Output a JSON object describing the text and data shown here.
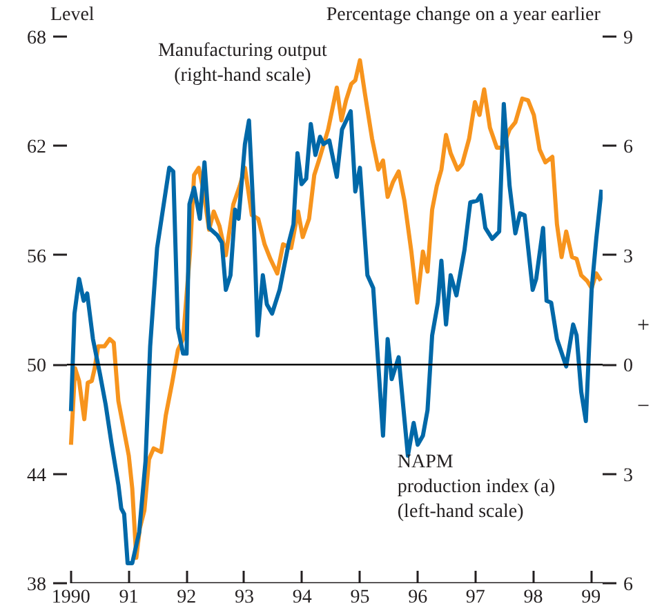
{
  "chart_data": {
    "type": "line",
    "ylabel": "Level",
    "y2label": "Percentage change on a year earlier",
    "annotations": [
      "+",
      "−"
    ],
    "xlim": [
      1989.93,
      1999.2
    ],
    "xticks": [
      1990,
      {
        "value": 1991,
        "label": "91"
      },
      {
        "value": 1992,
        "label": "92"
      },
      {
        "value": 1993,
        "label": "93"
      },
      {
        "value": 1994,
        "label": "94"
      },
      {
        "value": 1995,
        "label": "95"
      },
      {
        "value": 1996,
        "label": "96"
      },
      {
        "value": 1997,
        "label": "97"
      },
      {
        "value": 1998,
        "label": "98"
      },
      {
        "value": 1999,
        "label": "99"
      }
    ],
    "ylim": [
      38,
      68
    ],
    "yticks": [
      38,
      44,
      50,
      56,
      62,
      68
    ],
    "y2lim": [
      -6,
      9
    ],
    "y2ticks": [
      {
        "value": -6,
        "label": "6"
      },
      {
        "value": -3,
        "label": "3"
      },
      0,
      3,
      6,
      9
    ],
    "ref_lines": [
      {
        "axis": "y",
        "value": 50,
        "color": "#000000"
      }
    ],
    "grid": false,
    "series": [
      {
        "name": "Manufacturing output\n(right-hand scale)",
        "color": "#f7941d",
        "axis": "y2",
        "x": [
          1990.0,
          1990.07,
          1990.14,
          1990.23,
          1990.29,
          1990.36,
          1990.41,
          1990.47,
          1990.58,
          1990.67,
          1990.74,
          1990.82,
          1990.94,
          1991.0,
          1991.06,
          1991.13,
          1991.19,
          1991.27,
          1991.35,
          1991.43,
          1991.56,
          1991.64,
          1991.75,
          1991.85,
          1991.94,
          1992.06,
          1992.13,
          1992.21,
          1992.29,
          1992.39,
          1992.47,
          1992.57,
          1992.68,
          1992.81,
          1992.92,
          1993.01,
          1993.13,
          1993.24,
          1993.35,
          1993.45,
          1993.57,
          1993.67,
          1993.81,
          1993.93,
          1994.01,
          1994.12,
          1994.21,
          1994.29,
          1994.45,
          1994.6,
          1994.68,
          1994.76,
          1994.85,
          1994.92,
          1995.0,
          1995.09,
          1995.21,
          1995.32,
          1995.4,
          1995.48,
          1995.57,
          1995.67,
          1995.77,
          1995.89,
          1995.99,
          1996.09,
          1996.17,
          1996.25,
          1996.33,
          1996.41,
          1996.49,
          1996.57,
          1996.69,
          1996.77,
          1996.89,
          1996.99,
          1997.07,
          1997.15,
          1997.25,
          1997.37,
          1997.47,
          1997.59,
          1997.69,
          1997.81,
          1997.91,
          1998.01,
          1998.11,
          1998.21,
          1998.33,
          1998.41,
          1998.49,
          1998.57,
          1998.67,
          1998.75,
          1998.83,
          1998.93,
          1999.01,
          1999.09,
          1999.17
        ],
        "values": [
          -2.2,
          -0.1,
          -0.45,
          -1.5,
          -0.5,
          -0.45,
          -0.1,
          0.5,
          0.5,
          0.7,
          0.6,
          -1.0,
          -2.0,
          -2.5,
          -3.4,
          -5.3,
          -4.5,
          -4.0,
          -2.6,
          -2.3,
          -2.4,
          -1.4,
          -0.5,
          0.4,
          0.7,
          3.1,
          5.2,
          5.4,
          4.8,
          3.7,
          4.2,
          3.8,
          3.0,
          4.4,
          4.9,
          5.4,
          4.1,
          4.0,
          3.3,
          2.9,
          2.5,
          3.3,
          3.2,
          4.2,
          3.5,
          4.0,
          5.2,
          5.6,
          6.45,
          7.6,
          6.7,
          7.25,
          7.7,
          7.8,
          8.35,
          7.4,
          6.2,
          5.35,
          5.6,
          4.6,
          5.0,
          5.3,
          4.5,
          3.1,
          1.7,
          3.1,
          2.55,
          4.25,
          4.9,
          5.35,
          6.3,
          5.8,
          5.35,
          5.5,
          6.2,
          7.2,
          6.85,
          7.55,
          6.5,
          5.95,
          5.95,
          6.45,
          6.65,
          7.3,
          7.25,
          6.85,
          5.9,
          5.55,
          5.7,
          3.85,
          2.95,
          3.65,
          2.95,
          2.9,
          2.45,
          2.3,
          2.1,
          2.5,
          2.3
        ]
      },
      {
        "name": "NAPM\nproduction index (a)\n(left-hand scale)",
        "color": "#0068a8",
        "x": [
          1990.0,
          1990.06,
          1990.14,
          1990.22,
          1990.28,
          1990.38,
          1990.5,
          1990.6,
          1990.7,
          1990.82,
          1990.87,
          1990.92,
          1990.98,
          1991.06,
          1991.18,
          1991.29,
          1991.37,
          1991.49,
          1991.7,
          1991.77,
          1991.85,
          1991.94,
          1992.0,
          1992.05,
          1992.13,
          1992.23,
          1992.31,
          1992.39,
          1992.53,
          1992.61,
          1992.68,
          1992.76,
          1992.84,
          1992.9,
          1993.01,
          1993.08,
          1993.16,
          1993.23,
          1993.32,
          1993.39,
          1993.48,
          1993.61,
          1993.77,
          1993.85,
          1993.92,
          1993.99,
          1994.07,
          1994.15,
          1994.23,
          1994.31,
          1994.37,
          1994.47,
          1994.6,
          1994.69,
          1994.84,
          1994.92,
          1995.0,
          1995.13,
          1995.23,
          1995.4,
          1995.48,
          1995.55,
          1995.67,
          1995.83,
          1995.93,
          1996.0,
          1996.09,
          1996.17,
          1996.25,
          1996.35,
          1996.41,
          1996.49,
          1996.57,
          1996.67,
          1996.81,
          1996.91,
          1997.03,
          1997.09,
          1997.17,
          1997.29,
          1997.41,
          1997.49,
          1997.59,
          1997.69,
          1997.77,
          1997.85,
          1997.99,
          1998.05,
          1998.17,
          1998.23,
          1998.31,
          1998.41,
          1998.57,
          1998.69,
          1998.75,
          1998.83,
          1998.91,
          1999.01,
          1999.09,
          1999.18
        ],
        "values": [
          47.45,
          52.8,
          54.7,
          53.5,
          53.9,
          51.4,
          49.5,
          47.8,
          45.7,
          43.4,
          42.1,
          41.8,
          39.1,
          39.1,
          40.8,
          44.7,
          51.0,
          56.4,
          60.8,
          60.6,
          52.0,
          50.6,
          50.6,
          58.8,
          59.7,
          58.0,
          61.1,
          57.5,
          57.1,
          56.7,
          54.1,
          54.9,
          58.5,
          58.0,
          62.1,
          63.4,
          58.2,
          51.6,
          54.9,
          53.3,
          52.8,
          54.1,
          56.7,
          57.7,
          61.6,
          59.9,
          60.2,
          63.2,
          61.5,
          62.5,
          62.1,
          62.3,
          60.3,
          62.9,
          63.9,
          59.5,
          60.8,
          54.9,
          54.2,
          46.1,
          51.4,
          49.2,
          50.4,
          45.0,
          46.8,
          45.6,
          46.1,
          47.5,
          51.6,
          53.4,
          55.7,
          52.2,
          54.9,
          53.8,
          56.3,
          58.9,
          59.0,
          59.3,
          57.5,
          56.9,
          57.3,
          64.3,
          59.8,
          57.2,
          58.3,
          58.2,
          54.1,
          54.7,
          57.5,
          53.5,
          53.4,
          51.4,
          49.9,
          52.2,
          51.6,
          48.5,
          46.9,
          54.1,
          56.9,
          59.6
        ]
      }
    ]
  }
}
